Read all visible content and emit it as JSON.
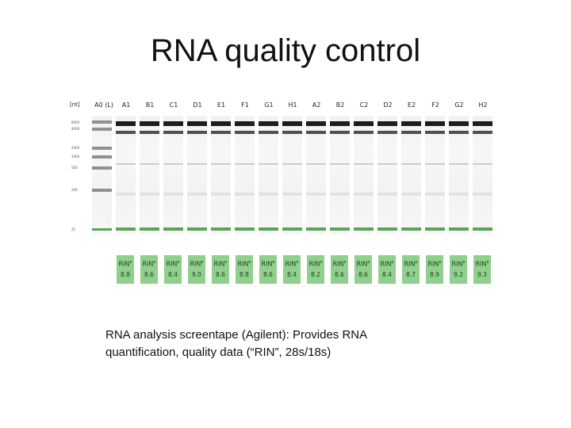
{
  "slide": {
    "title": "RNA quality control",
    "caption_line1": "RNA analysis screentape (Agilent):  Provides RNA",
    "caption_line2": "quantification, quality data (“RIN”, 28s/18s)"
  },
  "gel": {
    "unit_label": "[nt]",
    "ladder": {
      "label": "A0 (L)",
      "marks": [
        "6000",
        "4000",
        "2000",
        "1000",
        "500",
        "200",
        "25"
      ]
    },
    "rin_label": "RIN",
    "rin_sup": "e",
    "lanes": [
      {
        "name": "A1",
        "rin": "8.8"
      },
      {
        "name": "B1",
        "rin": "8.6"
      },
      {
        "name": "C1",
        "rin": "8.4"
      },
      {
        "name": "D1",
        "rin": "9.0"
      },
      {
        "name": "E1",
        "rin": "8.6"
      },
      {
        "name": "F1",
        "rin": "8.8"
      },
      {
        "name": "G1",
        "rin": "8.6"
      },
      {
        "name": "H1",
        "rin": "8.4"
      },
      {
        "name": "A2",
        "rin": "8.2"
      },
      {
        "name": "B2",
        "rin": "8.6"
      },
      {
        "name": "C2",
        "rin": "8.6"
      },
      {
        "name": "D2",
        "rin": "8.4"
      },
      {
        "name": "E2",
        "rin": "8.7"
      },
      {
        "name": "F2",
        "rin": "8.9"
      },
      {
        "name": "G2",
        "rin": "9.2"
      },
      {
        "name": "H2",
        "rin": "9.3"
      }
    ],
    "colors": {
      "rin_box": "#8fd08c",
      "marker_band": "#4a9a4a",
      "sample_band": "#111111"
    }
  }
}
